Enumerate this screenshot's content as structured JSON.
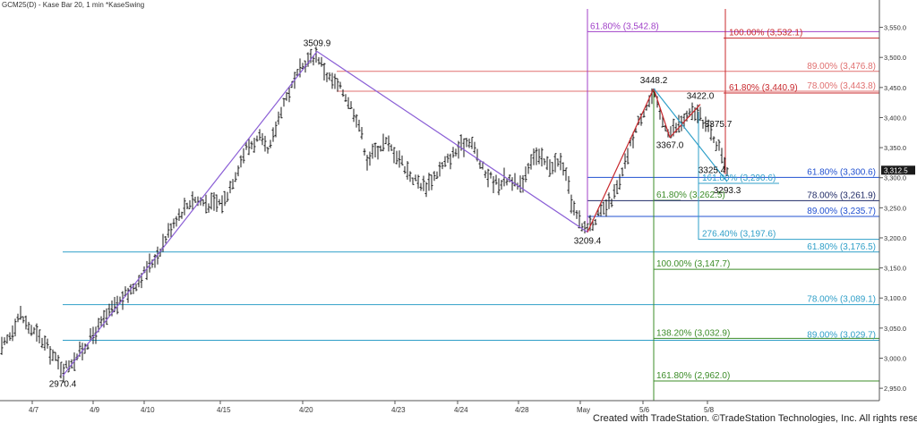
{
  "header": {
    "title": "GCM25(D) - Kase Bar 20, 1 min  *KaseSwing"
  },
  "footer": {
    "copyright": "Created with TradeStation. ©TradeStation Technologies, Inc. All rights reserved."
  },
  "colors": {
    "red": "#c8282d",
    "pink": "#e07070",
    "purple": "#a040c8",
    "violet": "#8b5fd6",
    "blue": "#2050d0",
    "teal": "#2f9fc8",
    "green": "#3c8c28",
    "navy": "#1f2a66",
    "bar": "#1a1a1a",
    "axis": "#555555"
  },
  "chart_data": {
    "type": "ohlc",
    "title": "GCM25(D) - Kase Bar 20, 1 min  *KaseSwing",
    "ylim": [
      2920,
      3580
    ],
    "y_ticks": [
      2950,
      3000,
      3050,
      3100,
      3150,
      3200,
      3250,
      3300,
      3350,
      3400,
      3450,
      3500,
      3550
    ],
    "y_tick_labels": [
      "2,950.0",
      "3,000.0",
      "3,050.0",
      "3,100.0",
      "3,150.0",
      "3,200.0",
      "3,250.0",
      "3,300.0",
      "3,350.0",
      "3,400.0",
      "3,450.0",
      "3,500.0",
      "3,550.0"
    ],
    "x_categories": [
      "4/7",
      "4/9",
      "4/10",
      "4/15",
      "4/20",
      "4/23",
      "4/24",
      "4/28",
      "May",
      "5/6",
      "5/8"
    ],
    "last_price": 3312.5,
    "last_price_label": "3,312.5",
    "pivots": [
      {
        "label": "2970.4",
        "price": 2970.4
      },
      {
        "label": "3509.9",
        "price": 3509.9
      },
      {
        "label": "3209.4",
        "price": 3209.4
      },
      {
        "label": "3448.2",
        "price": 3448.2
      },
      {
        "label": "3367.0",
        "price": 3367.0
      },
      {
        "label": "3422.0",
        "price": 3422.0
      },
      {
        "label": "3375.7",
        "price": 3375.7
      },
      {
        "label": "3325.4",
        "price": 3325.4
      },
      {
        "label": "3293.3",
        "price": 3293.3
      }
    ],
    "swing_lines": [
      {
        "color": "violet",
        "from": 2970.4,
        "to": 3509.9
      },
      {
        "color": "violet",
        "from": 3509.9,
        "to": 3209.4
      },
      {
        "color": "red",
        "from": 3209.4,
        "to": 3448.2
      },
      {
        "color": "red",
        "from": 3448.2,
        "to": 3367.0
      },
      {
        "color": "red",
        "from": 3367.0,
        "to": 3422.0
      },
      {
        "color": "teal",
        "from": 3448.2,
        "to": 3293.3
      }
    ],
    "levels": [
      {
        "label": "61.80% (3,542.8)",
        "price": 3542.8,
        "color": "purple"
      },
      {
        "label": "100.00% (3,532.1)",
        "price": 3532.1,
        "color": "red"
      },
      {
        "label": "89.00% (3,476.8)",
        "price": 3476.8,
        "color": "pink"
      },
      {
        "label": "78.00% (3,443.8)",
        "price": 3443.8,
        "color": "pink"
      },
      {
        "label": "61.80% (3,440.9)",
        "price": 3440.9,
        "color": "red"
      },
      {
        "label": "61.80% (3,300.6)",
        "price": 3300.6,
        "color": "blue"
      },
      {
        "label": "161.80% (3,290.6)",
        "price": 3290.6,
        "color": "teal"
      },
      {
        "label": "61.80% (3,262.5)",
        "price": 3262.5,
        "color": "green"
      },
      {
        "label": "78.00% (3,261.9)",
        "price": 3261.9,
        "color": "navy"
      },
      {
        "label": "89.00% (3,235.7)",
        "price": 3235.7,
        "color": "blue"
      },
      {
        "label": "276.40% (3,197.6)",
        "price": 3197.6,
        "color": "teal"
      },
      {
        "label": "61.80% (3,176.5)",
        "price": 3176.5,
        "color": "teal"
      },
      {
        "label": "100.00% (3,147.7)",
        "price": 3147.7,
        "color": "green"
      },
      {
        "label": "78.00% (3,089.1)",
        "price": 3089.1,
        "color": "teal"
      },
      {
        "label": "138.20% (3,032.9)",
        "price": 3032.9,
        "color": "green"
      },
      {
        "label": "89.00% (3,029.7)",
        "price": 3029.7,
        "color": "teal"
      },
      {
        "label": "161.80% (2,962.0)",
        "price": 2962.0,
        "color": "green"
      }
    ]
  }
}
